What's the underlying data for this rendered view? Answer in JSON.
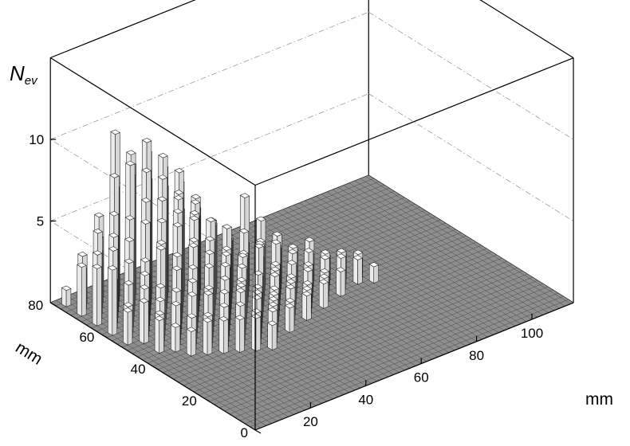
{
  "chart_data": {
    "type": "lego-3d-histogram",
    "z_label_main": "N",
    "z_label_sub": "ev",
    "x_label": "mm",
    "y_label": "mm",
    "xlim": [
      0,
      115
    ],
    "ylim": [
      0,
      80
    ],
    "zlim": [
      0,
      15
    ],
    "x_ticks": [
      "20",
      "40",
      "60",
      "80",
      "100"
    ],
    "x_tick_values": [
      20,
      40,
      60,
      80,
      100
    ],
    "y_ticks": [
      "0",
      "20",
      "40",
      "60",
      "80"
    ],
    "y_tick_values": [
      0,
      20,
      40,
      60,
      80
    ],
    "z_ticks": [
      "5",
      "10"
    ],
    "z_tick_values": [
      5,
      10
    ],
    "bin_width_mm": 2,
    "grid": true,
    "bars": [
      [
        2,
        76,
        1
      ],
      [
        2,
        70,
        3
      ],
      [
        2,
        64,
        3.5
      ],
      [
        2,
        58,
        4
      ],
      [
        2,
        52,
        2
      ],
      [
        4,
        72,
        2.5
      ],
      [
        4,
        66,
        4
      ],
      [
        4,
        60,
        3
      ],
      [
        4,
        54,
        2
      ],
      [
        6,
        74,
        3
      ],
      [
        6,
        68,
        5
      ],
      [
        6,
        62,
        4.5
      ],
      [
        6,
        56,
        3
      ],
      [
        6,
        50,
        2.5
      ],
      [
        6,
        44,
        2
      ],
      [
        8,
        70,
        3.5
      ],
      [
        8,
        64,
        5
      ],
      [
        8,
        58,
        4
      ],
      [
        8,
        52,
        3
      ],
      [
        8,
        46,
        2
      ],
      [
        10,
        72,
        4
      ],
      [
        10,
        66,
        6
      ],
      [
        10,
        60,
        5
      ],
      [
        10,
        54,
        3.5
      ],
      [
        10,
        48,
        2.5
      ],
      [
        10,
        42,
        1.5
      ],
      [
        12,
        74,
        5
      ],
      [
        12,
        68,
        8
      ],
      [
        12,
        62,
        6
      ],
      [
        12,
        56,
        4
      ],
      [
        12,
        50,
        3
      ],
      [
        12,
        44,
        2.5
      ],
      [
        12,
        38,
        1.5
      ],
      [
        14,
        70,
        7
      ],
      [
        14,
        64,
        9
      ],
      [
        14,
        58,
        6
      ],
      [
        14,
        52,
        5
      ],
      [
        14,
        46,
        3
      ],
      [
        14,
        40,
        2
      ],
      [
        16,
        72,
        10
      ],
      [
        16,
        66,
        8
      ],
      [
        16,
        60,
        7
      ],
      [
        16,
        54,
        5
      ],
      [
        16,
        48,
        4
      ],
      [
        16,
        42,
        3
      ],
      [
        16,
        36,
        2
      ],
      [
        18,
        68,
        9
      ],
      [
        18,
        62,
        8.5
      ],
      [
        18,
        56,
        6
      ],
      [
        18,
        50,
        4.5
      ],
      [
        18,
        44,
        3.5
      ],
      [
        18,
        38,
        2
      ],
      [
        20,
        70,
        8
      ],
      [
        20,
        64,
        10
      ],
      [
        20,
        58,
        7
      ],
      [
        20,
        52,
        6
      ],
      [
        20,
        46,
        4
      ],
      [
        20,
        40,
        3
      ],
      [
        20,
        34,
        2
      ],
      [
        22,
        66,
        9
      ],
      [
        22,
        60,
        8
      ],
      [
        22,
        54,
        6.5
      ],
      [
        22,
        48,
        5
      ],
      [
        22,
        42,
        3
      ],
      [
        22,
        36,
        2.5
      ],
      [
        24,
        68,
        7
      ],
      [
        24,
        62,
        9
      ],
      [
        24,
        56,
        7
      ],
      [
        24,
        50,
        5
      ],
      [
        24,
        44,
        4
      ],
      [
        24,
        38,
        3
      ],
      [
        24,
        32,
        2
      ],
      [
        26,
        64,
        8
      ],
      [
        26,
        58,
        7
      ],
      [
        26,
        52,
        6
      ],
      [
        26,
        46,
        4.5
      ],
      [
        26,
        40,
        3.5
      ],
      [
        26,
        34,
        2.5
      ],
      [
        28,
        66,
        6.5
      ],
      [
        28,
        60,
        8
      ],
      [
        28,
        54,
        6
      ],
      [
        28,
        48,
        5
      ],
      [
        28,
        42,
        4
      ],
      [
        28,
        36,
        3
      ],
      [
        28,
        30,
        2
      ],
      [
        30,
        62,
        7
      ],
      [
        30,
        56,
        5.5
      ],
      [
        30,
        50,
        4.5
      ],
      [
        30,
        44,
        3.5
      ],
      [
        30,
        38,
        3
      ],
      [
        30,
        32,
        2
      ],
      [
        32,
        64,
        5
      ],
      [
        32,
        58,
        6
      ],
      [
        32,
        52,
        5.5
      ],
      [
        32,
        46,
        4
      ],
      [
        32,
        40,
        3
      ],
      [
        32,
        34,
        2.5
      ],
      [
        32,
        28,
        1.5
      ],
      [
        34,
        60,
        6
      ],
      [
        34,
        54,
        5
      ],
      [
        34,
        48,
        4
      ],
      [
        34,
        42,
        3.5
      ],
      [
        34,
        36,
        2.5
      ],
      [
        34,
        30,
        2
      ],
      [
        36,
        62,
        5
      ],
      [
        36,
        56,
        4.5
      ],
      [
        36,
        50,
        5
      ],
      [
        36,
        44,
        3
      ],
      [
        36,
        38,
        2.5
      ],
      [
        36,
        32,
        2
      ],
      [
        38,
        58,
        4.5
      ],
      [
        38,
        52,
        4
      ],
      [
        38,
        46,
        3.5
      ],
      [
        38,
        40,
        3
      ],
      [
        38,
        34,
        2
      ],
      [
        40,
        60,
        4
      ],
      [
        40,
        54,
        3.5
      ],
      [
        40,
        48,
        3
      ],
      [
        40,
        42,
        2.5
      ],
      [
        40,
        36,
        2
      ],
      [
        42,
        56,
        3.5
      ],
      [
        42,
        50,
        3
      ],
      [
        42,
        44,
        4
      ],
      [
        42,
        38,
        2
      ],
      [
        42,
        32,
        1.5
      ],
      [
        44,
        58,
        3
      ],
      [
        44,
        52,
        4
      ],
      [
        44,
        46,
        3
      ],
      [
        44,
        40,
        2.5
      ],
      [
        44,
        34,
        1.5
      ],
      [
        46,
        54,
        3
      ],
      [
        46,
        48,
        3.5
      ],
      [
        46,
        42,
        2.5
      ],
      [
        46,
        36,
        2
      ],
      [
        48,
        56,
        5.5
      ],
      [
        48,
        50,
        3
      ],
      [
        48,
        44,
        2.5
      ],
      [
        48,
        38,
        2
      ],
      [
        50,
        52,
        3
      ],
      [
        50,
        46,
        3.5
      ],
      [
        50,
        40,
        2
      ],
      [
        50,
        34,
        1.5
      ],
      [
        52,
        54,
        4
      ],
      [
        52,
        48,
        3
      ],
      [
        52,
        42,
        2.5
      ],
      [
        52,
        36,
        1.5
      ],
      [
        54,
        50,
        2.5
      ],
      [
        54,
        44,
        2
      ],
      [
        54,
        38,
        1.5
      ],
      [
        56,
        52,
        3
      ],
      [
        56,
        46,
        2.5
      ],
      [
        56,
        40,
        2
      ],
      [
        58,
        48,
        2.5
      ],
      [
        58,
        42,
        2
      ],
      [
        58,
        36,
        1.5
      ],
      [
        60,
        50,
        2
      ],
      [
        60,
        44,
        2.5
      ],
      [
        60,
        38,
        1.5
      ],
      [
        62,
        46,
        2
      ],
      [
        62,
        40,
        1.5
      ],
      [
        64,
        48,
        2.5
      ],
      [
        64,
        42,
        2
      ],
      [
        66,
        44,
        2
      ],
      [
        66,
        38,
        1.5
      ],
      [
        68,
        46,
        1.5
      ],
      [
        68,
        40,
        2
      ],
      [
        70,
        42,
        2
      ],
      [
        72,
        44,
        1.5
      ],
      [
        74,
        40,
        1.5
      ],
      [
        76,
        42,
        1.5
      ],
      [
        78,
        38,
        1
      ]
    ]
  }
}
